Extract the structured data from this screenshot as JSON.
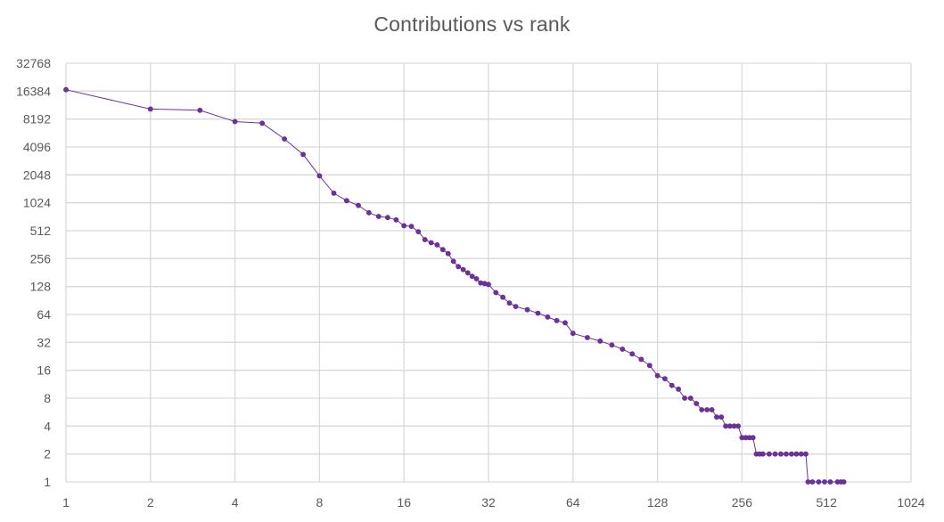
{
  "chart_data": {
    "type": "scatter",
    "title": "Contributions vs rank",
    "xlabel": "",
    "ylabel": "",
    "x_scale": "log2",
    "y_scale": "log2",
    "xlim": [
      1,
      1024
    ],
    "ylim": [
      1,
      32768
    ],
    "x_ticks": [
      1,
      2,
      4,
      8,
      16,
      32,
      64,
      128,
      256,
      512,
      1024
    ],
    "x_tick_labels": [
      "1",
      "2",
      "4",
      "8",
      "16",
      "32",
      "64",
      "128",
      "256",
      "512",
      "1024"
    ],
    "y_ticks": [
      1,
      2,
      4,
      8,
      16,
      32,
      64,
      128,
      256,
      512,
      1024,
      2048,
      4096,
      8192,
      16384,
      32768
    ],
    "y_tick_labels": [
      "1",
      "2",
      "4",
      "8",
      "16",
      "32",
      "64",
      "128",
      "256",
      "512",
      "1024",
      "2048",
      "4096",
      "8192",
      "16384",
      "32768"
    ],
    "grid": true,
    "legend": "none",
    "series_color": "#7030A0",
    "gridline_color": "#D9D9D9",
    "markers": true,
    "connected": true,
    "series": [
      {
        "x": [
          1,
          2,
          3,
          4,
          5,
          6,
          7,
          8,
          9,
          10,
          11,
          12,
          13,
          14,
          15,
          16,
          17,
          18,
          19,
          20,
          21,
          22,
          23,
          24,
          25,
          26,
          27,
          28,
          29,
          30,
          31,
          32,
          34,
          36,
          38,
          40,
          44,
          48,
          52,
          56,
          60,
          64,
          72,
          80,
          88,
          96,
          104,
          112,
          120,
          128,
          136,
          144,
          152,
          160,
          168,
          176,
          184,
          192,
          200,
          208,
          216,
          224,
          232,
          240,
          248,
          256,
          264,
          272,
          280,
          288,
          296,
          304,
          320,
          336,
          352,
          368,
          384,
          400,
          416,
          432,
          440,
          456,
          480,
          504,
          528,
          560,
          576,
          590
        ],
        "y": [
          17000,
          10500,
          10200,
          7700,
          7400,
          5000,
          3400,
          2000,
          1300,
          1080,
          960,
          800,
          730,
          710,
          670,
          580,
          570,
          500,
          410,
          380,
          360,
          320,
          290,
          240,
          210,
          195,
          180,
          165,
          155,
          140,
          138,
          135,
          110,
          98,
          85,
          78,
          72,
          66,
          60,
          55,
          52,
          40,
          36,
          33,
          30,
          27,
          24,
          21,
          18,
          14,
          13,
          11,
          10,
          8,
          8,
          7,
          6,
          6,
          6,
          5,
          5,
          4,
          4,
          4,
          4,
          3,
          3,
          3,
          3,
          2,
          2,
          2,
          2,
          2,
          2,
          2,
          2,
          2,
          2,
          2,
          1,
          1,
          1,
          1,
          1,
          1,
          1,
          1
        ]
      }
    ]
  }
}
